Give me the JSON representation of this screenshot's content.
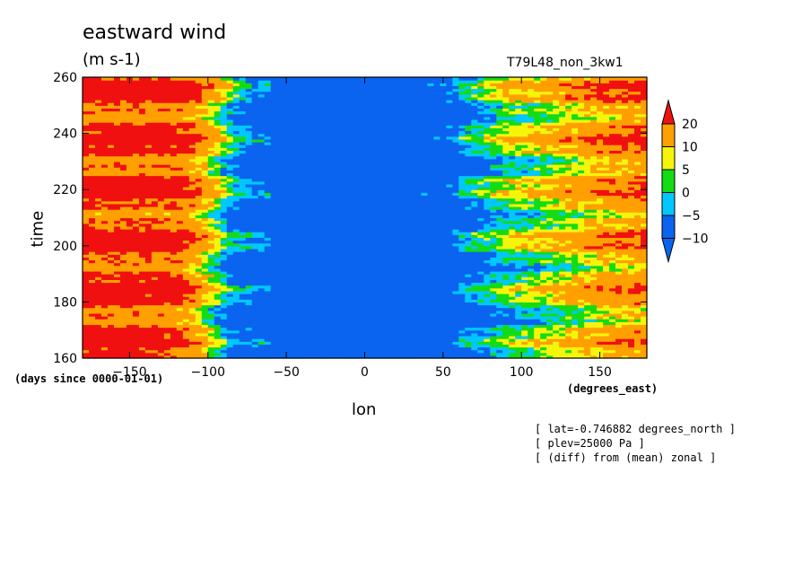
{
  "chart_data": {
    "type": "heatmap",
    "title": "eastward wind",
    "subtitle": "(m s-1)",
    "run_label": "T79L48_non_3kw1",
    "xlabel": "lon",
    "xunits": "(degrees_east)",
    "ylabel": "time",
    "yunits": "(days since 0000-01-01)",
    "xlim": [
      -180,
      180
    ],
    "ylim": [
      160,
      260
    ],
    "xticks": [
      -150,
      -100,
      -50,
      0,
      50,
      100,
      150
    ],
    "yticks": [
      160,
      180,
      200,
      220,
      240,
      260
    ],
    "notes": [
      "[ lat=-0.746882 degrees_north ]",
      "[ plev=25000 Pa ]",
      "[ (diff) from (mean) zonal ]"
    ],
    "colorbar": {
      "levels": [
        -10,
        -5,
        0,
        5,
        10,
        20
      ],
      "labels": [
        "20",
        "10",
        "5",
        "0",
        "−5",
        "−10"
      ],
      "colors": [
        "#0a64f0",
        "#00c8ff",
        "#14dc14",
        "#f5f50a",
        "#ffa000",
        "#f01010"
      ]
    },
    "band_profile": {
      "lon": [
        -180,
        -150,
        -120,
        -105,
        -95,
        -85,
        -70,
        -50,
        0,
        50,
        70,
        90,
        110,
        130,
        150,
        180
      ],
      "value_at_day_160": [
        22,
        22,
        20,
        10,
        0,
        -10,
        -12,
        -12,
        -12,
        -12,
        -8,
        -2,
        2,
        6,
        10,
        14
      ],
      "value_at_day_260": [
        22,
        22,
        22,
        18,
        10,
        0,
        -10,
        -12,
        -12,
        -10,
        -2,
        6,
        8,
        12,
        16,
        20
      ]
    }
  }
}
